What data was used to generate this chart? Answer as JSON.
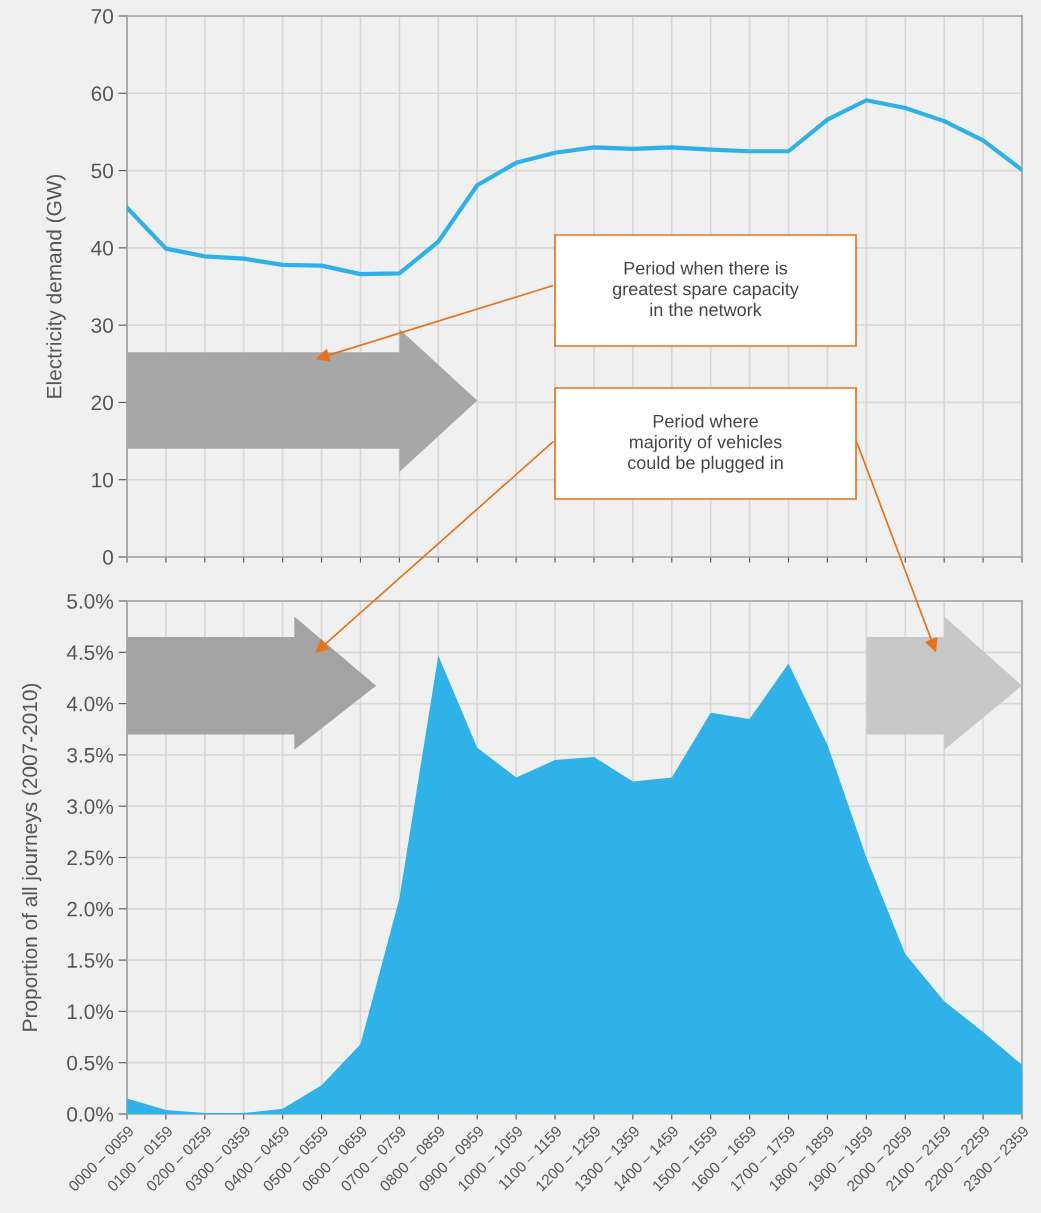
{
  "chart_data": [
    {
      "type": "line",
      "ylabel": "Electricity demand (GW)",
      "categories": [
        null,
        null,
        null,
        null,
        null,
        null,
        null,
        null,
        null,
        null,
        null,
        null,
        null,
        null,
        null,
        null,
        null,
        null,
        null,
        null,
        null,
        null,
        null,
        null
      ],
      "series": [
        {
          "color": "#2eb1e8",
          "values": [
            45.2,
            39.9,
            38.9,
            38.6,
            37.8,
            37.7,
            36.6,
            36.7,
            40.8,
            48.1,
            51.0,
            52.3,
            53.0,
            52.8,
            53.0,
            52.7,
            52.5,
            52.5,
            56.6,
            59.1,
            58.1,
            56.4,
            53.9,
            50.1
          ]
        }
      ],
      "ylim": [
        0,
        70
      ],
      "yticks": [
        0,
        10,
        20,
        30,
        40,
        50,
        60,
        70
      ],
      "grid": true,
      "tick_labels": "y",
      "marker": "none",
      "line_style": "solid",
      "annotations": [
        "Period when there is\ngreatest spare capacity\nin the network",
        "Period where\nmajority of vehicles\ncould be plugged in"
      ]
    },
    {
      "type": "area",
      "ylabel": "Proportion of all journeys (2007-2010)",
      "categories": [
        "0000 – 0059",
        "0100 – 0159",
        "0200 – 0259",
        "0300 – 0359",
        "0400 – 0459",
        "0500 – 0559",
        "0600 – 0659",
        "0700 – 0759",
        "0800 – 0859",
        "0900 – 0959",
        "1000 – 1059",
        "1100 – 1159",
        "1200 – 1259",
        "1300 – 1359",
        "1400 – 1459",
        "1500 – 1559",
        "1600 – 1659",
        "1700 – 1759",
        "1800 – 1859",
        "1900 – 1959",
        "2000 – 2059",
        "2100 – 2159",
        "2200 – 2259",
        "2300 – 2359"
      ],
      "series": [
        {
          "color": "#2eb2e8",
          "values": [
            0.15,
            0.04,
            0.01,
            0.01,
            0.05,
            0.28,
            0.68,
            2.1,
            4.47,
            3.57,
            3.28,
            3.45,
            3.48,
            3.24,
            3.28,
            3.91,
            3.85,
            4.39,
            3.6,
            2.5,
            1.56,
            1.1,
            0.8,
            0.48
          ]
        }
      ],
      "ylim": [
        0,
        5
      ],
      "yticks": [
        {
          "value": 0,
          "label": "0.0%"
        },
        {
          "value": 0.5,
          "label": "0.5%"
        },
        {
          "value": 1,
          "label": "1.0%"
        },
        {
          "value": 1.5,
          "label": "1.5%"
        },
        {
          "value": 2,
          "label": "2.0%"
        },
        {
          "value": 2.5,
          "label": "2.5%"
        },
        {
          "value": 3,
          "label": "3.0%"
        },
        {
          "value": 3.5,
          "label": "3.5%"
        },
        {
          "value": 4,
          "label": "4.0%"
        },
        {
          "value": 4.5,
          "label": "4.5%"
        },
        {
          "value": 5,
          "label": "5.0%"
        }
      ],
      "grid": true
    }
  ]
}
